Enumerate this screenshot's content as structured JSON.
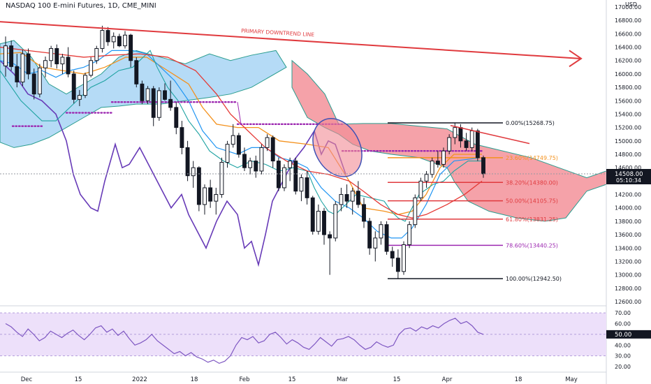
{
  "header": {
    "title": "NASDAQ 100 E-mini Futures, 1D, CME_MINI",
    "currency": "USD"
  },
  "annotations": {
    "trendline_label": "PRIMARY DOWNTREND LINE"
  },
  "colors": {
    "candle": "#131722",
    "downtrend": "#e03a3e",
    "cloud_bull": "#a8d5f5",
    "cloud_bear": "#f28b94",
    "tenkan": "#2196f3",
    "kijun": "#f4921e",
    "lagging": "#20a3a3",
    "lagging_span": "#673ab7",
    "ma": "#e53935",
    "base_dots": "#9c27b0",
    "rsi_bg": "#ede0fa",
    "rsi_line": "#7e57c2"
  },
  "chart_data": [
    {
      "type": "candlestick",
      "title": "NASDAQ 100 E-mini Futures, 1D, CME_MINI",
      "y_axis_labels": [
        "17000.00",
        "16800.00",
        "16600.00",
        "16400.00",
        "16200.00",
        "16000.00",
        "15800.00",
        "15600.00",
        "15400.00",
        "15200.00",
        "15000.00",
        "14800.00",
        "14600.00",
        "14400.00",
        "14200.00",
        "14000.00",
        "13800.00",
        "13600.00",
        "13400.00",
        "13200.00",
        "13000.00",
        "12800.00",
        "12600.00"
      ],
      "ylim": [
        12600,
        17000
      ],
      "x_axis_labels": [
        "Dec",
        "15",
        "2022",
        "18",
        "Feb",
        "15",
        "Mar",
        "15",
        "Apr",
        "18",
        "May"
      ],
      "price_badge": "14508.00",
      "countdown_badge": "05:10:34",
      "candles": [
        {
          "o": 16120,
          "h": 16560,
          "l": 15960,
          "c": 16420
        },
        {
          "o": 16420,
          "h": 16500,
          "l": 16050,
          "c": 16110
        },
        {
          "o": 16110,
          "h": 16300,
          "l": 15800,
          "c": 15880
        },
        {
          "o": 15880,
          "h": 16360,
          "l": 15820,
          "c": 16300
        },
        {
          "o": 16300,
          "h": 16380,
          "l": 15920,
          "c": 16000
        },
        {
          "o": 16000,
          "h": 16080,
          "l": 15620,
          "c": 15700
        },
        {
          "o": 15700,
          "h": 16150,
          "l": 15650,
          "c": 16090
        },
        {
          "o": 16090,
          "h": 16260,
          "l": 15950,
          "c": 16200
        },
        {
          "o": 16200,
          "h": 16420,
          "l": 16100,
          "c": 16380
        },
        {
          "o": 16380,
          "h": 16440,
          "l": 16080,
          "c": 16150
        },
        {
          "o": 16150,
          "h": 16300,
          "l": 16000,
          "c": 16250
        },
        {
          "o": 16250,
          "h": 16400,
          "l": 15950,
          "c": 16000
        },
        {
          "o": 16000,
          "h": 16050,
          "l": 15560,
          "c": 15620
        },
        {
          "o": 15620,
          "h": 15760,
          "l": 15520,
          "c": 15680
        },
        {
          "o": 15680,
          "h": 16020,
          "l": 15640,
          "c": 15980
        },
        {
          "o": 15980,
          "h": 16250,
          "l": 15950,
          "c": 16200
        },
        {
          "o": 16200,
          "h": 16420,
          "l": 16150,
          "c": 16380
        },
        {
          "o": 16380,
          "h": 16720,
          "l": 16320,
          "c": 16650
        },
        {
          "o": 16650,
          "h": 16700,
          "l": 16420,
          "c": 16480
        },
        {
          "o": 16480,
          "h": 16620,
          "l": 16380,
          "c": 16560
        },
        {
          "o": 16560,
          "h": 16600,
          "l": 16400,
          "c": 16420
        },
        {
          "o": 16420,
          "h": 16640,
          "l": 16380,
          "c": 16580
        },
        {
          "o": 16580,
          "h": 16600,
          "l": 16100,
          "c": 16200
        },
        {
          "o": 16200,
          "h": 16250,
          "l": 15800,
          "c": 15850
        },
        {
          "o": 15850,
          "h": 15900,
          "l": 15550,
          "c": 15600
        },
        {
          "o": 15600,
          "h": 15820,
          "l": 15550,
          "c": 15780
        },
        {
          "o": 15780,
          "h": 15820,
          "l": 15220,
          "c": 15350
        },
        {
          "o": 15350,
          "h": 15800,
          "l": 15300,
          "c": 15750
        },
        {
          "o": 15750,
          "h": 15860,
          "l": 15600,
          "c": 15620
        },
        {
          "o": 15620,
          "h": 15900,
          "l": 15450,
          "c": 15500
        },
        {
          "o": 15500,
          "h": 15580,
          "l": 15100,
          "c": 15200
        },
        {
          "o": 15200,
          "h": 15300,
          "l": 14800,
          "c": 14900
        },
        {
          "o": 14900,
          "h": 15000,
          "l": 14400,
          "c": 14480
        },
        {
          "o": 14480,
          "h": 14700,
          "l": 14300,
          "c": 14600
        },
        {
          "o": 14600,
          "h": 14620,
          "l": 13950,
          "c": 14050
        },
        {
          "o": 14050,
          "h": 14350,
          "l": 13900,
          "c": 14300
        },
        {
          "o": 14300,
          "h": 14420,
          "l": 14000,
          "c": 14100
        },
        {
          "o": 14100,
          "h": 14300,
          "l": 13900,
          "c": 14200
        },
        {
          "o": 14200,
          "h": 14750,
          "l": 14150,
          "c": 14680
        },
        {
          "o": 14680,
          "h": 15000,
          "l": 14600,
          "c": 14950
        },
        {
          "o": 14950,
          "h": 15250,
          "l": 14900,
          "c": 15080
        },
        {
          "o": 15080,
          "h": 15120,
          "l": 14750,
          "c": 14800
        },
        {
          "o": 14800,
          "h": 14900,
          "l": 14550,
          "c": 14600
        },
        {
          "o": 14600,
          "h": 14750,
          "l": 14500,
          "c": 14700
        },
        {
          "o": 14700,
          "h": 14780,
          "l": 14450,
          "c": 14550
        },
        {
          "o": 14550,
          "h": 14950,
          "l": 14500,
          "c": 14900
        },
        {
          "o": 14900,
          "h": 15100,
          "l": 14850,
          "c": 15050
        },
        {
          "o": 15050,
          "h": 15080,
          "l": 14600,
          "c": 14700
        },
        {
          "o": 14700,
          "h": 14750,
          "l": 14250,
          "c": 14300
        },
        {
          "o": 14300,
          "h": 14650,
          "l": 14250,
          "c": 14600
        },
        {
          "o": 14600,
          "h": 14750,
          "l": 14400,
          "c": 14700
        },
        {
          "o": 14700,
          "h": 14750,
          "l": 14200,
          "c": 14250
        },
        {
          "o": 14250,
          "h": 14500,
          "l": 14100,
          "c": 14450
        },
        {
          "o": 14450,
          "h": 14550,
          "l": 14050,
          "c": 14150
        },
        {
          "o": 14150,
          "h": 14180,
          "l": 13600,
          "c": 13650
        },
        {
          "o": 13650,
          "h": 14050,
          "l": 13600,
          "c": 13950
        },
        {
          "o": 13950,
          "h": 14000,
          "l": 13450,
          "c": 13600
        },
        {
          "o": 13600,
          "h": 13650,
          "l": 13000,
          "c": 13550
        },
        {
          "o": 13550,
          "h": 14100,
          "l": 13500,
          "c": 14050
        },
        {
          "o": 14050,
          "h": 14300,
          "l": 13950,
          "c": 14200
        },
        {
          "o": 14200,
          "h": 14350,
          "l": 14000,
          "c": 14100
        },
        {
          "o": 14100,
          "h": 14300,
          "l": 13900,
          "c": 14250
        },
        {
          "o": 14250,
          "h": 14400,
          "l": 14000,
          "c": 14050
        },
        {
          "o": 14050,
          "h": 14150,
          "l": 13700,
          "c": 13800
        },
        {
          "o": 13800,
          "h": 13850,
          "l": 13300,
          "c": 13400
        },
        {
          "o": 13400,
          "h": 13650,
          "l": 13200,
          "c": 13550
        },
        {
          "o": 13550,
          "h": 13800,
          "l": 13450,
          "c": 13750
        },
        {
          "o": 13750,
          "h": 13800,
          "l": 13300,
          "c": 13350
        },
        {
          "o": 13350,
          "h": 13420,
          "l": 13120,
          "c": 13250
        },
        {
          "o": 13250,
          "h": 13380,
          "l": 12942,
          "c": 13050
        },
        {
          "o": 13050,
          "h": 13500,
          "l": 13000,
          "c": 13450
        },
        {
          "o": 13450,
          "h": 13800,
          "l": 13400,
          "c": 13750
        },
        {
          "o": 13750,
          "h": 14200,
          "l": 13700,
          "c": 14150
        },
        {
          "o": 14150,
          "h": 14450,
          "l": 14100,
          "c": 14400
        },
        {
          "o": 14400,
          "h": 14550,
          "l": 14300,
          "c": 14500
        },
        {
          "o": 14500,
          "h": 14750,
          "l": 14450,
          "c": 14700
        },
        {
          "o": 14700,
          "h": 14850,
          "l": 14600,
          "c": 14650
        },
        {
          "o": 14650,
          "h": 14900,
          "l": 14600,
          "c": 14850
        },
        {
          "o": 14850,
          "h": 15100,
          "l": 14800,
          "c": 15050
        },
        {
          "o": 15050,
          "h": 15268,
          "l": 14950,
          "c": 15200
        },
        {
          "o": 15200,
          "h": 15250,
          "l": 14900,
          "c": 15000
        },
        {
          "o": 15000,
          "h": 15120,
          "l": 14850,
          "c": 14900
        },
        {
          "o": 14900,
          "h": 15200,
          "l": 14850,
          "c": 15150
        },
        {
          "o": 15150,
          "h": 15180,
          "l": 14700,
          "c": 14750
        },
        {
          "o": 14750,
          "h": 14780,
          "l": 14450,
          "c": 14508
        }
      ],
      "fibonacci": [
        {
          "label": "0.00%(15268.75)",
          "price": 15268.75
        },
        {
          "label": "23.60%(14749.75)",
          "price": 14749.75
        },
        {
          "label": "38.20%(14380.00)",
          "price": 14380.0
        },
        {
          "label": "50.00%(14105.75)",
          "price": 14105.75
        },
        {
          "label": "61.80%(13831.25)",
          "price": 13831.25
        },
        {
          "label": "78.60%(13440.25)",
          "price": 13440.25
        },
        {
          "label": "100.00%(12942.50)",
          "price": 12942.5
        }
      ],
      "rsi": {
        "y_axis_labels": [
          "70.00",
          "60.00",
          "50.00",
          "40.00",
          "30.00",
          "20.00"
        ],
        "ylim": [
          20,
          74
        ],
        "current_badge": "50.00"
      }
    }
  ]
}
